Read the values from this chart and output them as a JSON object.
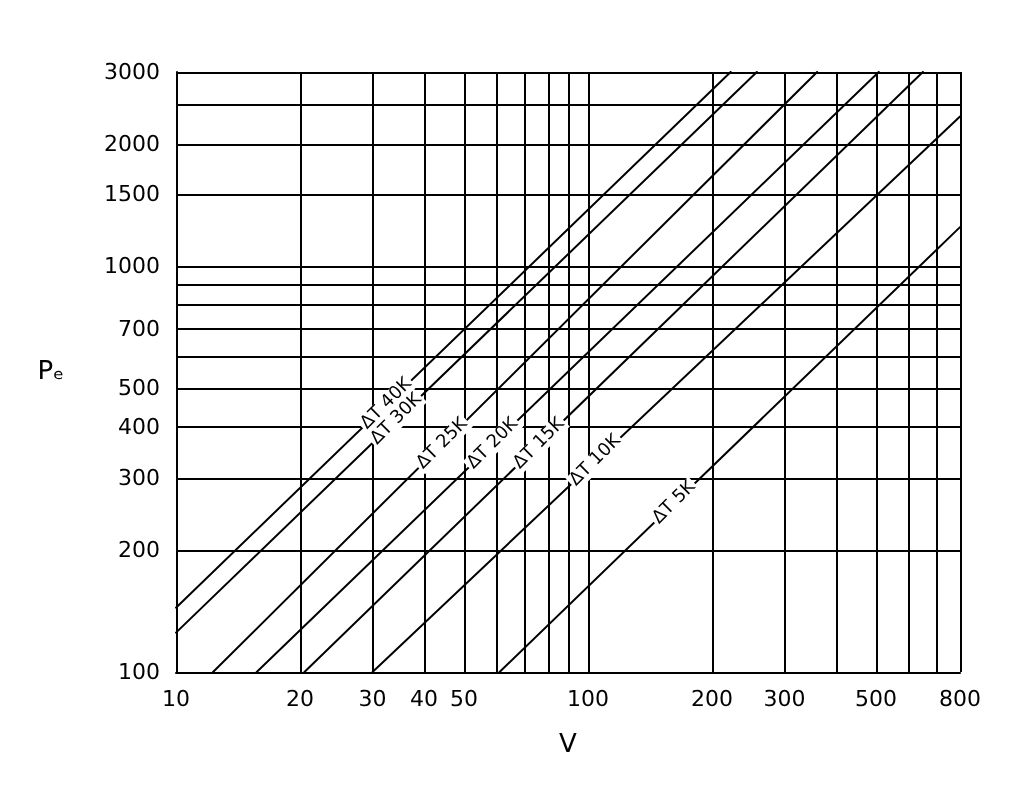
{
  "chart_data": {
    "type": "line",
    "xlabel": "V",
    "ylabel": "Pₑ",
    "log": "xy",
    "grid": true,
    "legend": false,
    "marker": "none",
    "line_style": "solid",
    "xlim": [
      10,
      800
    ],
    "ylim": [
      100,
      3000
    ],
    "xticks": [
      10,
      20,
      30,
      40,
      50,
      {
        "value": 60,
        "label": null
      },
      {
        "value": 70,
        "label": null
      },
      {
        "value": 80,
        "label": null
      },
      {
        "value": 90,
        "label": null
      },
      100,
      200,
      300,
      {
        "value": 400,
        "label": null
      },
      500,
      {
        "value": 600,
        "label": null
      },
      {
        "value": 700,
        "label": null
      },
      800
    ],
    "yticks": [
      100,
      200,
      300,
      400,
      500,
      {
        "value": 600,
        "label": null
      },
      700,
      {
        "value": 800,
        "label": null
      },
      {
        "value": 900,
        "label": null
      },
      1000,
      1500,
      2000,
      {
        "value": 2500,
        "label": null
      },
      3000
    ],
    "series": [
      {
        "name": "ΔT 40K",
        "color": "#000000",
        "x": [
          10,
          222
        ],
        "values": [
          144,
          3000
        ]
      },
      {
        "name": "ΔT 30K",
        "color": "#000000",
        "x": [
          10,
          257
        ],
        "values": [
          125,
          3000
        ]
      },
      {
        "name": "ΔT 25K",
        "color": "#000000",
        "x": [
          12.3,
          360
        ],
        "values": [
          100,
          3000
        ]
      },
      {
        "name": "ΔT 20K",
        "color": "#000000",
        "x": [
          15.7,
          508
        ],
        "values": [
          100,
          3000
        ]
      },
      {
        "name": "ΔT 15K",
        "color": "#000000",
        "x": [
          20.5,
          650
        ],
        "values": [
          100,
          3000
        ]
      },
      {
        "name": "ΔT 10K",
        "color": "#000000",
        "x": [
          30,
          800
        ],
        "values": [
          100,
          2330
        ]
      },
      {
        "name": "ΔT 5K",
        "color": "#000000",
        "x": [
          61,
          800
        ],
        "values": [
          100,
          1245
        ]
      }
    ]
  }
}
